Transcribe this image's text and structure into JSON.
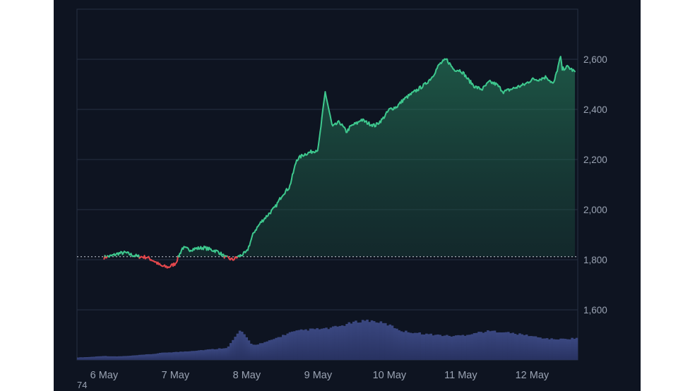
{
  "chart_data": {
    "type": "area",
    "x_tick_labels": [
      "6 May",
      "7 May",
      "8 May",
      "9 May",
      "10 May",
      "11 May",
      "12 May"
    ],
    "y_tick_labels": [
      "2,600",
      "2,400",
      "2,200",
      "2,000",
      "1,800",
      "1,600"
    ],
    "ylim": [
      1400,
      2800
    ],
    "baseline": 1812,
    "grid": true,
    "colors": {
      "up": "#3ec88e",
      "down": "#e5484d",
      "volume": "#2c3660",
      "grid": "#273043",
      "background": "#0e1421"
    },
    "price_series": {
      "x": [
        6.0,
        6.1,
        6.2,
        6.3,
        6.4,
        6.5,
        6.6,
        6.7,
        6.8,
        6.9,
        7.0,
        7.1,
        7.2,
        7.3,
        7.4,
        7.5,
        7.6,
        7.7,
        7.8,
        7.9,
        8.0,
        8.1,
        8.2,
        8.3,
        8.4,
        8.5,
        8.6,
        8.7,
        8.8,
        8.9,
        9.0,
        9.1,
        9.2,
        9.3,
        9.4,
        9.45,
        9.5,
        9.55,
        9.6,
        9.7,
        9.8,
        9.9,
        10.0,
        10.1,
        10.2,
        10.3,
        10.4,
        10.5,
        10.6,
        10.7,
        10.8,
        10.9,
        11.0,
        11.05,
        11.1,
        11.2,
        11.3,
        11.4,
        11.5,
        11.6,
        11.7,
        11.8,
        11.9,
        12.0,
        12.1,
        12.2,
        12.3,
        12.4,
        12.42,
        12.5,
        12.6
      ],
      "y": [
        1810,
        1815,
        1825,
        1828,
        1818,
        1812,
        1810,
        1795,
        1775,
        1770,
        1785,
        1848,
        1840,
        1845,
        1848,
        1840,
        1832,
        1810,
        1800,
        1815,
        1830,
        1910,
        1950,
        1980,
        2010,
        2060,
        2090,
        2200,
        2220,
        2230,
        2240,
        2470,
        2330,
        2350,
        2310,
        2330,
        2340,
        2345,
        2360,
        2345,
        2335,
        2360,
        2400,
        2410,
        2440,
        2460,
        2480,
        2500,
        2530,
        2580,
        2600,
        2560,
        2555,
        2540,
        2520,
        2490,
        2480,
        2510,
        2500,
        2470,
        2480,
        2490,
        2500,
        2520,
        2520,
        2530,
        2500,
        2610,
        2560,
        2570,
        2550
      ]
    },
    "volume_profile": [
      0.05,
      0.06,
      0.08,
      0.07,
      0.08,
      0.1,
      0.12,
      0.15,
      0.16,
      0.18,
      0.2,
      0.22,
      0.25,
      0.6,
      0.3,
      0.35,
      0.45,
      0.55,
      0.6,
      0.62,
      0.63,
      0.68,
      0.75,
      0.8,
      0.77,
      0.7,
      0.58,
      0.55,
      0.52,
      0.5,
      0.48,
      0.5,
      0.55,
      0.58,
      0.57,
      0.53,
      0.5,
      0.45,
      0.42,
      0.42,
      0.44
    ]
  },
  "footer": {
    "corner_label": "74"
  }
}
